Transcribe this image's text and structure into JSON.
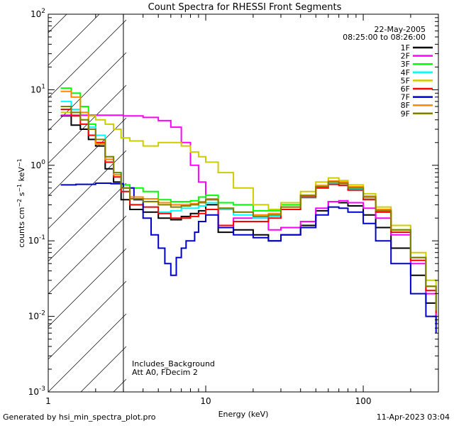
{
  "chart_data": {
    "type": "line",
    "title": "Count Spectra for RHESSI Front Segments",
    "xlabel": "Energy (keV)",
    "ylabel": "counts cm-2 s-1 keV-1",
    "xscale": "log",
    "yscale": "log",
    "xlim": [
      1,
      300
    ],
    "ylim": [
      0.001,
      100
    ],
    "x_ticks": [
      1,
      10,
      100
    ],
    "x_tick_labels": [
      "1",
      "10",
      "100"
    ],
    "y_ticks": [
      0.001,
      0.01,
      0.1,
      1,
      10,
      100
    ],
    "y_tick_exponents": [
      "-3",
      "-2",
      "-1",
      "0",
      "1",
      "2"
    ],
    "hatched_region": [
      1,
      3
    ],
    "date": "22-May-2005",
    "time_range": "08:25:00 to 08:26:00",
    "annotations": [
      "Includes_Background",
      "Att A0, FDecim 2"
    ],
    "footer_left": "Generated by hsi_min_spectra_plot.pro",
    "footer_right": "11-Apr-2023 03:04",
    "legend_position": "top-right",
    "series": [
      {
        "name": "1F",
        "color": "#000000",
        "x": [
          1.2,
          1.4,
          1.6,
          1.8,
          2.0,
          2.3,
          2.6,
          2.9,
          3.3,
          4,
          5,
          6,
          7,
          8,
          9,
          10,
          12,
          15,
          20,
          25,
          30,
          40,
          50,
          60,
          70,
          80,
          100,
          120,
          150,
          200,
          250,
          290
        ],
        "y": [
          4.5,
          3.4,
          3.0,
          2.2,
          1.8,
          0.9,
          0.6,
          0.35,
          0.26,
          0.24,
          0.2,
          0.19,
          0.21,
          0.23,
          0.25,
          0.3,
          0.13,
          0.14,
          0.12,
          0.1,
          0.12,
          0.16,
          0.25,
          0.33,
          0.32,
          0.29,
          0.22,
          0.15,
          0.08,
          0.035,
          0.015,
          0.008
        ]
      },
      {
        "name": "2F",
        "color": "#ff00ff",
        "x": [
          1.2,
          1.5,
          2,
          2.5,
          3,
          4,
          5,
          6,
          7,
          8,
          9,
          10,
          12,
          15,
          20,
          25,
          30,
          40,
          50,
          60,
          70,
          80,
          100,
          120,
          150,
          200,
          250,
          290
        ],
        "y": [
          4.6,
          4.6,
          4.6,
          4.6,
          4.5,
          4.3,
          3.9,
          3.2,
          2.0,
          1.0,
          0.6,
          0.35,
          0.15,
          0.2,
          0.2,
          0.14,
          0.15,
          0.18,
          0.27,
          0.33,
          0.34,
          0.32,
          0.27,
          0.2,
          0.12,
          0.05,
          0.02,
          0.01
        ]
      },
      {
        "name": "3F",
        "color": "#00ff00",
        "x": [
          1.2,
          1.4,
          1.6,
          1.8,
          2.0,
          2.3,
          2.6,
          2.9,
          3.3,
          4,
          5,
          6,
          7,
          8,
          9,
          10,
          12,
          15,
          20,
          25,
          30,
          40,
          50,
          60,
          70,
          80,
          100,
          120,
          150,
          200,
          250,
          290
        ],
        "y": [
          10.5,
          9.0,
          6.0,
          3.5,
          2.0,
          1.2,
          0.8,
          0.55,
          0.5,
          0.45,
          0.35,
          0.33,
          0.33,
          0.34,
          0.38,
          0.4,
          0.32,
          0.3,
          0.25,
          0.25,
          0.3,
          0.4,
          0.52,
          0.6,
          0.57,
          0.5,
          0.38,
          0.25,
          0.14,
          0.06,
          0.025,
          0.012
        ]
      },
      {
        "name": "4F",
        "color": "#00ffff",
        "x": [
          1.2,
          1.4,
          1.6,
          1.8,
          2.0,
          2.3,
          2.6,
          2.9,
          3.3,
          4,
          5,
          6,
          7,
          8,
          9,
          10,
          12,
          15,
          20,
          25,
          30,
          40,
          50,
          60,
          70,
          80,
          100,
          120,
          150,
          200,
          250,
          290
        ],
        "y": [
          7.0,
          5.5,
          4.0,
          3.2,
          2.5,
          1.3,
          0.8,
          0.45,
          0.3,
          0.28,
          0.24,
          0.25,
          0.27,
          0.27,
          0.29,
          0.32,
          0.26,
          0.22,
          0.2,
          0.21,
          0.26,
          0.37,
          0.5,
          0.57,
          0.55,
          0.48,
          0.36,
          0.24,
          0.13,
          0.055,
          0.022,
          0.011
        ]
      },
      {
        "name": "5F",
        "color": "#cccc00",
        "x": [
          1.2,
          1.4,
          1.6,
          1.8,
          2.0,
          2.3,
          2.6,
          2.9,
          3.3,
          4,
          5,
          6,
          7,
          8,
          9,
          10,
          12,
          15,
          20,
          25,
          30,
          40,
          50,
          60,
          70,
          80,
          100,
          120,
          150,
          200,
          250,
          290
        ],
        "y": [
          5.0,
          5.0,
          5.0,
          4.5,
          4.0,
          3.5,
          3.0,
          2.3,
          2.1,
          1.8,
          2.0,
          2.0,
          1.8,
          1.5,
          1.3,
          1.1,
          0.8,
          0.5,
          0.3,
          0.26,
          0.32,
          0.45,
          0.6,
          0.68,
          0.63,
          0.55,
          0.42,
          0.28,
          0.16,
          0.07,
          0.03,
          0.015
        ]
      },
      {
        "name": "6F",
        "color": "#ff0000",
        "x": [
          1.2,
          1.4,
          1.6,
          1.8,
          2.0,
          2.3,
          2.6,
          2.9,
          3.3,
          4,
          5,
          6,
          7,
          8,
          9,
          10,
          12,
          15,
          20,
          25,
          30,
          40,
          50,
          60,
          70,
          80,
          100,
          120,
          150,
          200,
          250,
          290
        ],
        "y": [
          5.5,
          4.5,
          3.5,
          2.5,
          2.0,
          1.1,
          0.7,
          0.45,
          0.3,
          0.28,
          0.23,
          0.2,
          0.2,
          0.21,
          0.23,
          0.26,
          0.16,
          0.18,
          0.18,
          0.2,
          0.26,
          0.38,
          0.5,
          0.56,
          0.54,
          0.47,
          0.35,
          0.24,
          0.13,
          0.055,
          0.022,
          0.011
        ]
      },
      {
        "name": "7F",
        "color": "#0000cc",
        "x": [
          1.2,
          1.5,
          2,
          2.5,
          3,
          3.5,
          4,
          4.5,
          5,
          5.5,
          6,
          6.5,
          7,
          7.5,
          8,
          8.5,
          9,
          10,
          12,
          15,
          20,
          25,
          30,
          40,
          50,
          60,
          70,
          80,
          100,
          120,
          150,
          200,
          250,
          290
        ],
        "y": [
          0.55,
          0.56,
          0.58,
          0.57,
          0.5,
          0.35,
          0.2,
          0.12,
          0.08,
          0.05,
          0.035,
          0.06,
          0.08,
          0.1,
          0.1,
          0.13,
          0.18,
          0.22,
          0.15,
          0.12,
          0.11,
          0.1,
          0.12,
          0.15,
          0.22,
          0.28,
          0.27,
          0.24,
          0.17,
          0.1,
          0.05,
          0.02,
          0.01,
          0.006
        ]
      },
      {
        "name": "8F",
        "color": "#ff8800",
        "x": [
          1.2,
          1.4,
          1.6,
          1.8,
          2.0,
          2.3,
          2.6,
          2.9,
          3.3,
          4,
          5,
          6,
          7,
          8,
          9,
          10,
          12,
          15,
          20,
          25,
          30,
          40,
          50,
          60,
          70,
          80,
          100,
          120,
          150,
          200,
          250,
          290
        ],
        "y": [
          9.5,
          8.0,
          5.0,
          3.0,
          1.9,
          1.2,
          0.75,
          0.5,
          0.38,
          0.36,
          0.32,
          0.3,
          0.3,
          0.31,
          0.33,
          0.36,
          0.27,
          0.24,
          0.22,
          0.23,
          0.28,
          0.4,
          0.54,
          0.62,
          0.6,
          0.52,
          0.39,
          0.26,
          0.14,
          0.06,
          0.025,
          0.012
        ]
      },
      {
        "name": "9F",
        "color": "#808000",
        "x": [
          1.2,
          1.4,
          1.6,
          1.8,
          2.0,
          2.3,
          2.6,
          2.9,
          3.3,
          4,
          5,
          6,
          7,
          8,
          9,
          10,
          12,
          15,
          20,
          25,
          30,
          40,
          50,
          60,
          70,
          80,
          100,
          120,
          150,
          200,
          250,
          290
        ],
        "y": [
          6.0,
          5.0,
          4.0,
          3.0,
          2.2,
          1.3,
          0.8,
          0.5,
          0.36,
          0.33,
          0.3,
          0.28,
          0.29,
          0.3,
          0.32,
          0.35,
          0.27,
          0.24,
          0.21,
          0.22,
          0.28,
          0.4,
          0.52,
          0.6,
          0.58,
          0.5,
          0.38,
          0.25,
          0.14,
          0.06,
          0.025,
          0.012
        ]
      }
    ]
  }
}
